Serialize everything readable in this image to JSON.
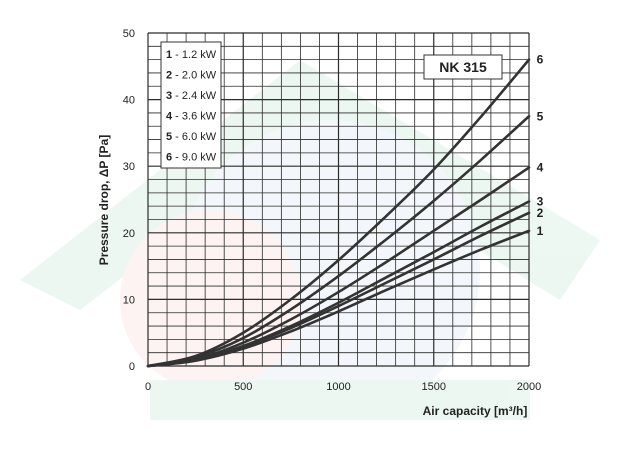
{
  "chart_data": {
    "type": "line",
    "title": "NK 315",
    "xlabel": "Air capacity [m³/h]",
    "ylabel": "Pressure drop, ΔP [Pa]",
    "xlim": [
      0,
      2000
    ],
    "ylim": [
      0,
      50
    ],
    "x_ticks": [
      "0",
      "500",
      "1000",
      "1500",
      "2000"
    ],
    "y_ticks": [
      "0",
      "10",
      "20",
      "30",
      "40",
      "50"
    ],
    "grid": true,
    "legend_position": "top-left",
    "x": [
      0,
      250,
      500,
      750,
      1000,
      1250,
      1500,
      1750,
      2000
    ],
    "series": [
      {
        "name": "1",
        "legend": "1 - 1.2 kW",
        "values": [
          0,
          0.8,
          2.6,
          5.2,
          8.2,
          11.4,
          14.5,
          17.5,
          20.3
        ]
      },
      {
        "name": "2",
        "legend": "2 - 2.0 kW",
        "values": [
          0,
          0.9,
          2.9,
          5.7,
          9.0,
          12.5,
          16.0,
          19.6,
          23.0
        ]
      },
      {
        "name": "3",
        "legend": "3 - 2.4 kW",
        "values": [
          0,
          0.9,
          3.0,
          6.0,
          9.5,
          13.3,
          17.1,
          21.0,
          24.7
        ]
      },
      {
        "name": "4",
        "legend": "4 - 3.6 kW",
        "values": [
          0,
          1.0,
          3.5,
          7.0,
          11.1,
          15.6,
          20.3,
          25.0,
          29.8
        ]
      },
      {
        "name": "5",
        "legend": "5 - 6.0 kW",
        "values": [
          0,
          1.3,
          4.2,
          8.5,
          13.5,
          19.0,
          24.8,
          31.0,
          37.5
        ]
      },
      {
        "name": "6",
        "legend": "6 - 9.0 kW",
        "values": [
          0,
          1.5,
          5.0,
          10.0,
          15.9,
          22.5,
          29.5,
          37.5,
          46.0
        ]
      }
    ],
    "colors": {
      "line": "#333333",
      "grid": "#2b2b2b",
      "background": "#ffffff"
    }
  }
}
